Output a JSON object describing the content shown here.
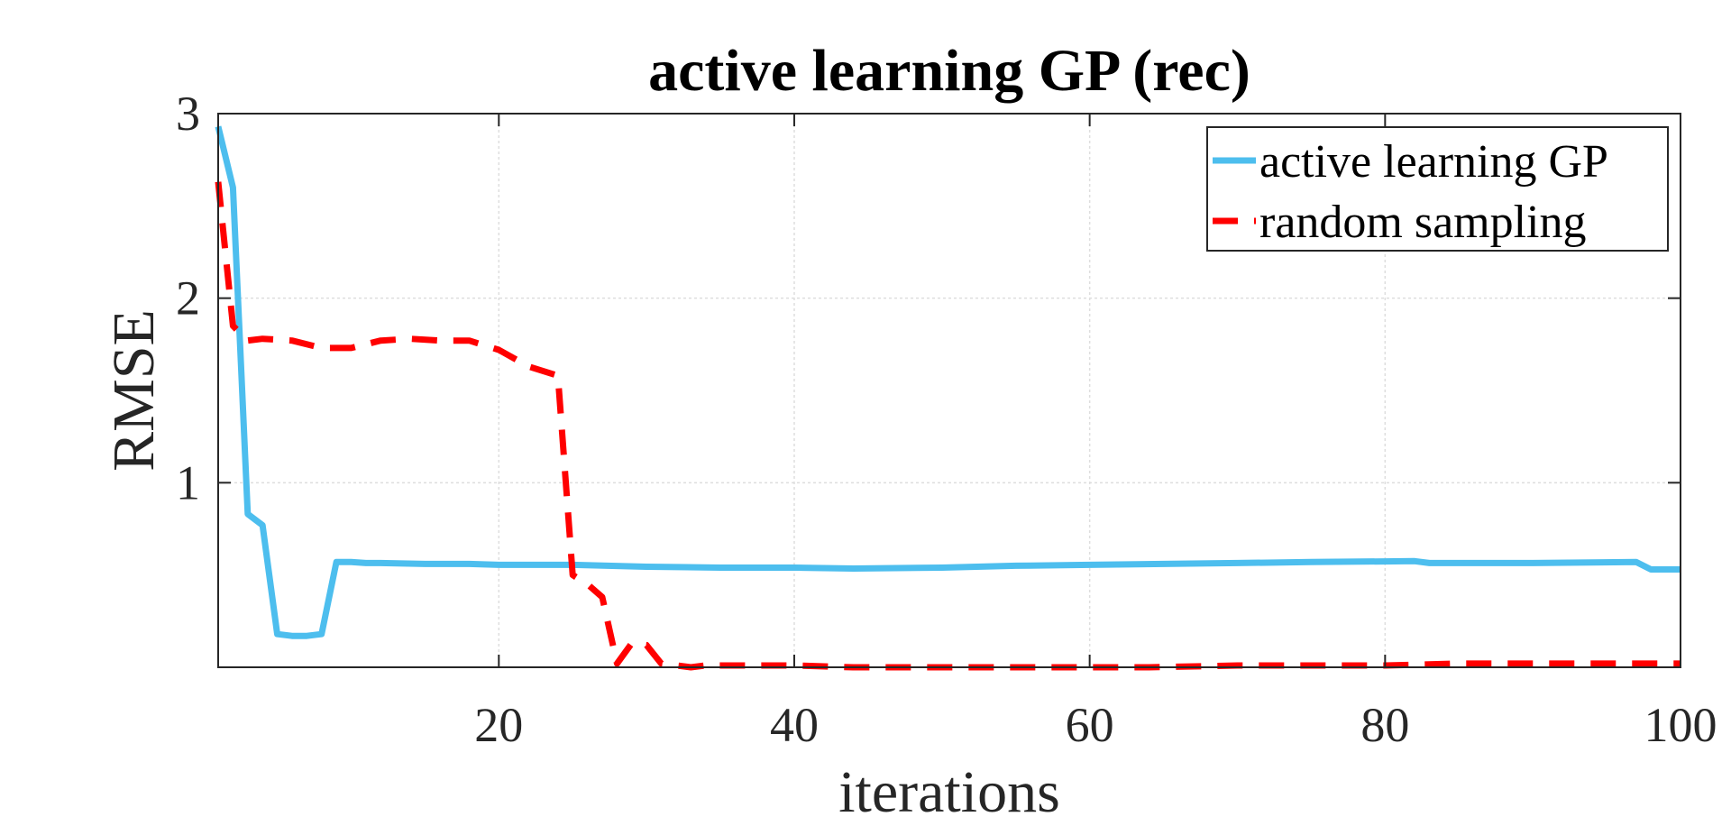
{
  "chart_data": {
    "type": "line",
    "title": "active learning GP (rec)",
    "xlabel": "iterations",
    "ylabel": "RMSE",
    "xlim": [
      1,
      100
    ],
    "ylim": [
      0,
      3
    ],
    "xticks": [
      20,
      40,
      60,
      80,
      100
    ],
    "xtick_labels": [
      "20",
      "40",
      "60",
      "80",
      "100"
    ],
    "yticks": [
      1,
      2,
      3
    ],
    "ytick_labels": [
      "1",
      "2",
      "3"
    ],
    "grid": true,
    "legend_position": "top-right",
    "series": [
      {
        "name": "active learning GP",
        "color": "#4DBEEE",
        "style": "solid",
        "points": [
          [
            1,
            2.93
          ],
          [
            2,
            2.6
          ],
          [
            3,
            0.83
          ],
          [
            4,
            0.77
          ],
          [
            5,
            0.18
          ],
          [
            6,
            0.17
          ],
          [
            7,
            0.17
          ],
          [
            8,
            0.18
          ],
          [
            9,
            0.57
          ],
          [
            10,
            0.57
          ],
          [
            11,
            0.565
          ],
          [
            12,
            0.565
          ],
          [
            15,
            0.56
          ],
          [
            18,
            0.56
          ],
          [
            20,
            0.555
          ],
          [
            25,
            0.555
          ],
          [
            30,
            0.545
          ],
          [
            35,
            0.54
          ],
          [
            40,
            0.54
          ],
          [
            44,
            0.535
          ],
          [
            50,
            0.54
          ],
          [
            55,
            0.55
          ],
          [
            60,
            0.555
          ],
          [
            65,
            0.56
          ],
          [
            70,
            0.565
          ],
          [
            75,
            0.57
          ],
          [
            82,
            0.575
          ],
          [
            83,
            0.565
          ],
          [
            90,
            0.565
          ],
          [
            97,
            0.57
          ],
          [
            98,
            0.53
          ],
          [
            100,
            0.53
          ]
        ]
      },
      {
        "name": "random sampling",
        "color": "#FF0000",
        "style": "dashed",
        "points": [
          [
            1,
            2.63
          ],
          [
            2,
            1.85
          ],
          [
            3,
            1.77
          ],
          [
            4,
            1.78
          ],
          [
            6,
            1.77
          ],
          [
            8,
            1.73
          ],
          [
            10,
            1.73
          ],
          [
            12,
            1.77
          ],
          [
            14,
            1.78
          ],
          [
            16,
            1.77
          ],
          [
            18,
            1.77
          ],
          [
            20,
            1.72
          ],
          [
            22,
            1.63
          ],
          [
            24,
            1.58
          ],
          [
            25,
            0.5
          ],
          [
            26,
            0.45
          ],
          [
            27,
            0.38
          ],
          [
            28,
            0.02
          ],
          [
            29,
            0.13
          ],
          [
            30,
            0.12
          ],
          [
            31,
            0.02
          ],
          [
            33,
            0.0
          ],
          [
            34,
            0.01
          ],
          [
            40,
            0.01
          ],
          [
            44,
            0.0
          ],
          [
            50,
            0.0
          ],
          [
            60,
            0.0
          ],
          [
            64,
            0.0
          ],
          [
            70,
            0.01
          ],
          [
            80,
            0.01
          ],
          [
            85,
            0.02
          ],
          [
            90,
            0.02
          ],
          [
            95,
            0.02
          ],
          [
            100,
            0.02
          ]
        ]
      }
    ]
  }
}
